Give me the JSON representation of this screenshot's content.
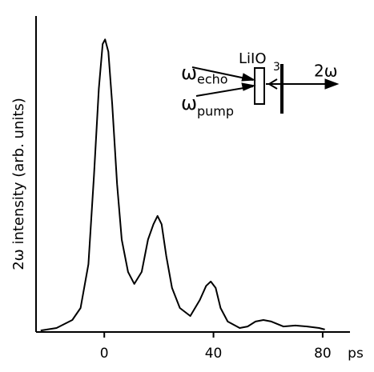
{
  "chart_data": {
    "type": "line",
    "y_label": "2ω intensity (arb. units)",
    "x_unit": "ps",
    "x": [
      -23.3,
      -17.5,
      -11.7,
      -8.7,
      -5.8,
      -3.8,
      -2,
      -0.6,
      0.3,
      1.5,
      2.9,
      4.7,
      6.4,
      8.7,
      11,
      13.7,
      16,
      18,
      19.5,
      21,
      22.7,
      24.8,
      27.7,
      31.5,
      35,
      37.3,
      39,
      40.8,
      42.6,
      45.2,
      49.6,
      52.5,
      55.4,
      58.3,
      61.2,
      65.6,
      70,
      74.3,
      78.7,
      80.8
    ],
    "values": [
      0.5,
      1.3,
      3.9,
      7.8,
      22,
      50.6,
      79,
      93.5,
      95,
      91,
      74,
      48,
      30,
      19.5,
      15.6,
      19.5,
      30,
      35,
      37.7,
      35,
      24.7,
      14.3,
      7.8,
      5.2,
      10.4,
      15,
      16.4,
      14.3,
      7.8,
      3.4,
      1.3,
      1.8,
      3.4,
      3.9,
      3.4,
      1.8,
      2.1,
      1.8,
      1.3,
      0.8
    ],
    "color": "#000000",
    "xlim": [
      -25,
      90
    ],
    "ylim": [
      0,
      100
    ],
    "xticks": [
      0,
      40,
      80
    ],
    "inset": {
      "echo_symbol": "ω",
      "echo_subscript": "echo",
      "crystal": "LiIO",
      "crystal_subscript": "3",
      "pump_symbol": "ω",
      "pump_subscript": "pump",
      "output": "2ω"
    }
  }
}
